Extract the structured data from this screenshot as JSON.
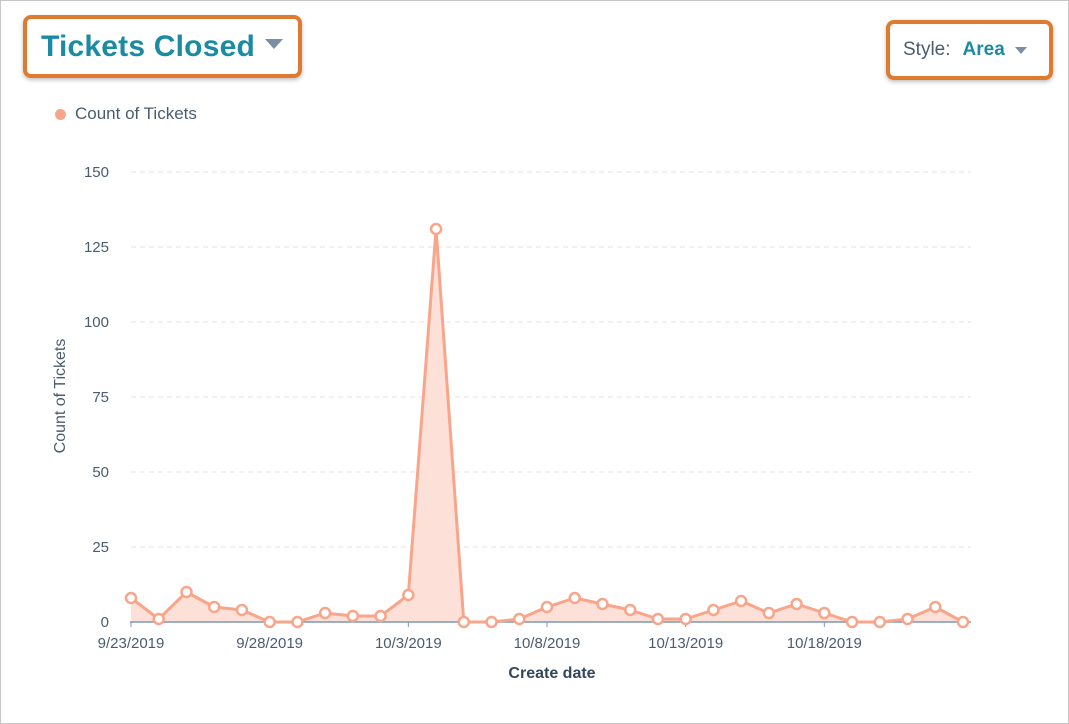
{
  "header": {
    "title": "Tickets Closed",
    "title_caret_icon": "chevron-down-icon",
    "style_label": "Style:",
    "style_value": "Area",
    "style_caret_icon": "chevron-down-icon",
    "highlight_color": "#e07a2e"
  },
  "chart_data": {
    "type": "area",
    "xlabel": "Create date",
    "ylabel": "Count of Tickets",
    "ylim": [
      0,
      150
    ],
    "yticks": [
      0,
      25,
      50,
      75,
      100,
      125,
      150
    ],
    "xtick_labels": [
      "9/23/2019",
      "9/28/2019",
      "10/3/2019",
      "10/8/2019",
      "10/13/2019",
      "10/18/2019"
    ],
    "xtick_indices": [
      0,
      5,
      10,
      15,
      20,
      25
    ],
    "grid": true,
    "legend_position": "top-left",
    "color": "#f9a58a",
    "fill_color": "#fde0d7",
    "x": [
      "9/23/2019",
      "9/24/2019",
      "9/25/2019",
      "9/26/2019",
      "9/27/2019",
      "9/28/2019",
      "9/29/2019",
      "9/30/2019",
      "10/1/2019",
      "10/2/2019",
      "10/3/2019",
      "10/4/2019",
      "10/5/2019",
      "10/6/2019",
      "10/7/2019",
      "10/8/2019",
      "10/9/2019",
      "10/10/2019",
      "10/11/2019",
      "10/12/2019",
      "10/13/2019",
      "10/14/2019",
      "10/15/2019",
      "10/16/2019",
      "10/17/2019",
      "10/18/2019",
      "10/19/2019",
      "10/20/2019",
      "10/21/2019",
      "10/22/2019",
      "10/23/2019"
    ],
    "series": [
      {
        "name": "Count of Tickets",
        "values": [
          8,
          1,
          10,
          5,
          4,
          0,
          0,
          3,
          2,
          2,
          9,
          131,
          0,
          0,
          1,
          5,
          8,
          6,
          4,
          1,
          1,
          4,
          7,
          3,
          6,
          3,
          0,
          0,
          1,
          5,
          0
        ]
      }
    ]
  }
}
